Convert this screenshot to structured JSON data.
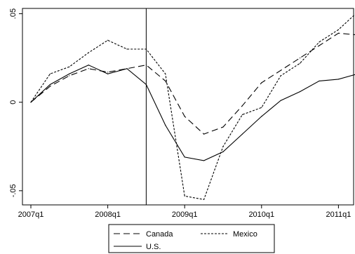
{
  "chart_data": {
    "type": "line",
    "title": "",
    "xlabel": "",
    "ylabel": "",
    "x": [
      "2007q1",
      "2007q2",
      "2007q3",
      "2007q4",
      "2008q1",
      "2008q2",
      "2008q3",
      "2008q4",
      "2009q1",
      "2009q2",
      "2009q3",
      "2009q4",
      "2010q1",
      "2010q2",
      "2010q3",
      "2010q4",
      "2011q1",
      "2011q2"
    ],
    "x_ticks": [
      "2007q1",
      "2008q1",
      "2009q1",
      "2010q1",
      "2011q1"
    ],
    "y_ticks": [
      {
        "value": -0.05,
        "label": "-.05"
      },
      {
        "value": 0,
        "label": "0"
      },
      {
        "value": 0.05,
        "label": ".05"
      }
    ],
    "ylim": [
      -0.058,
      0.053
    ],
    "vertical_line_at": "2008q3",
    "grid": false,
    "legend_position": "bottom",
    "series": [
      {
        "name": "Canada",
        "style": "dashed",
        "values": [
          0,
          0.009,
          0.015,
          0.019,
          0.017,
          0.019,
          0.021,
          0.012,
          -0.008,
          -0.018,
          -0.014,
          -0.002,
          0.011,
          0.018,
          0.025,
          0.032,
          0.039,
          0.038
        ]
      },
      {
        "name": "Mexico",
        "style": "dotted",
        "values": [
          0,
          0.016,
          0.02,
          0.028,
          0.035,
          0.03,
          0.03,
          0.016,
          -0.053,
          -0.055,
          -0.025,
          -0.007,
          -0.003,
          0.015,
          0.022,
          0.034,
          0.041,
          0.051
        ]
      },
      {
        "name": "U.S.",
        "style": "solid",
        "values": [
          0,
          0.01,
          0.016,
          0.021,
          0.016,
          0.019,
          0.01,
          -0.013,
          -0.031,
          -0.033,
          -0.028,
          -0.018,
          -0.008,
          0.001,
          0.006,
          0.012,
          0.013,
          0.016
        ]
      }
    ]
  }
}
